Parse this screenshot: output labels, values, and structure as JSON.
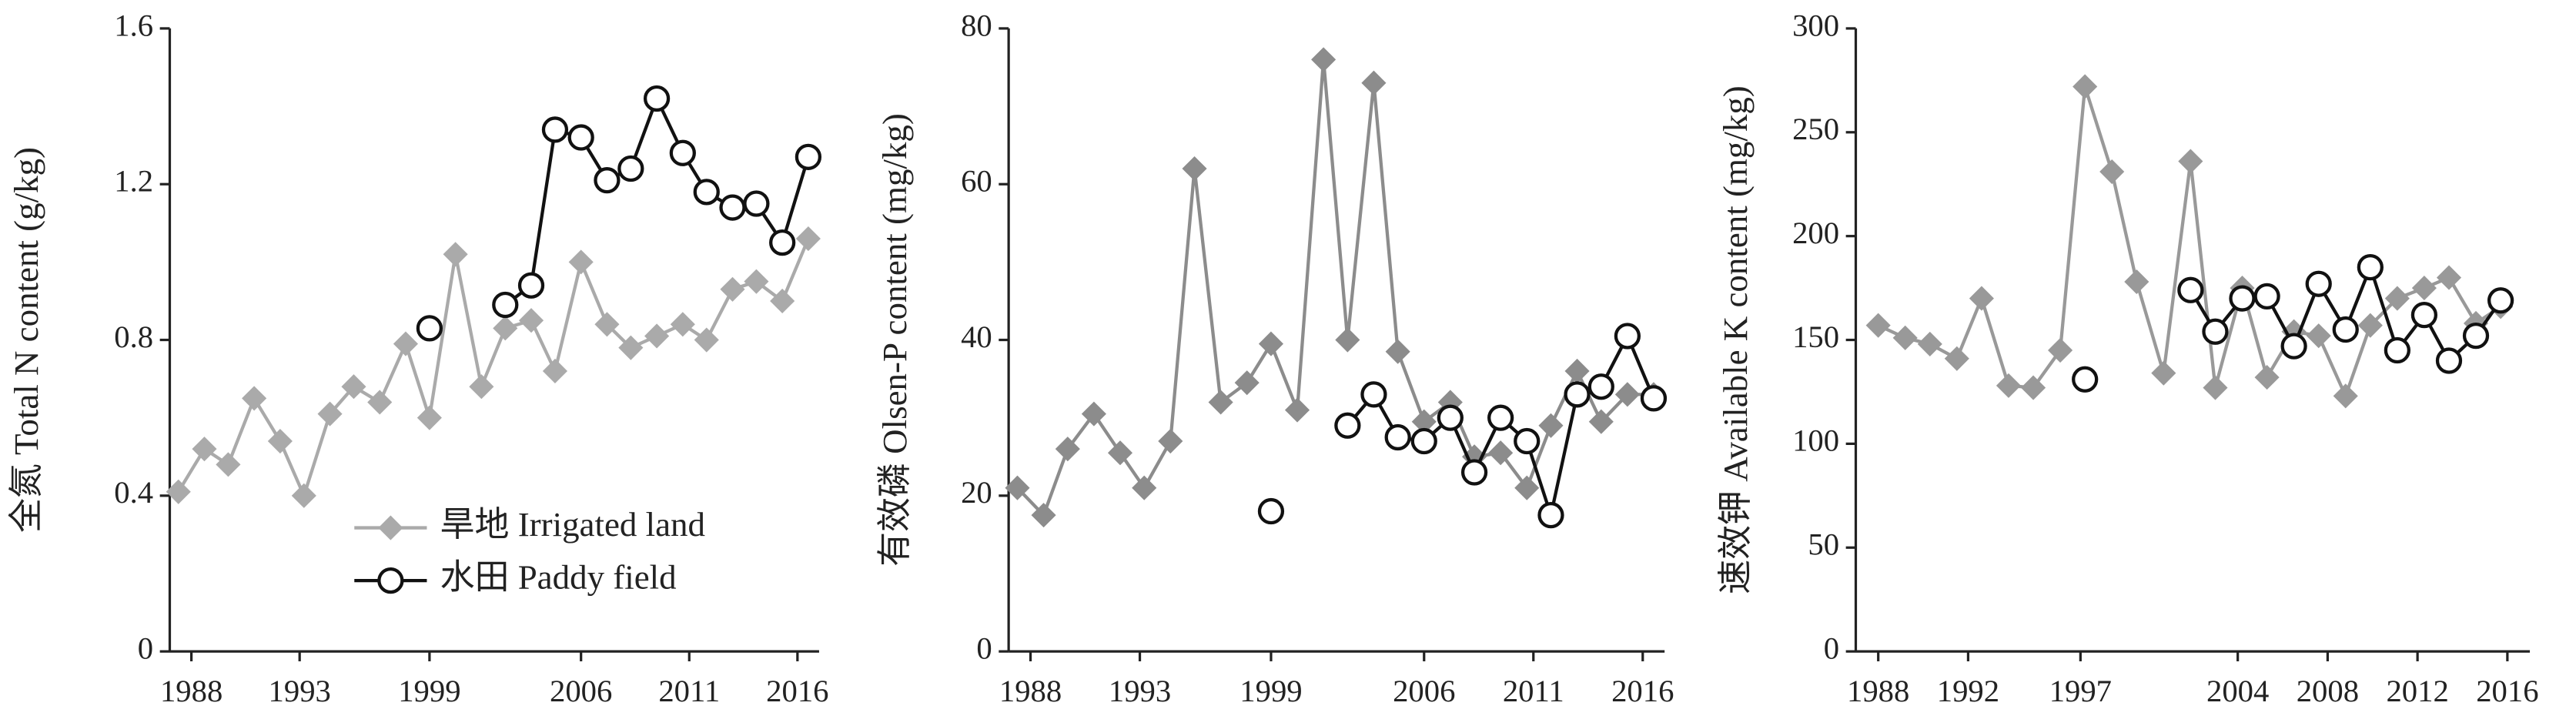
{
  "chart_data": [
    {
      "type": "line",
      "ylabel": "全氮 Total N content (g/kg)",
      "x": [
        1987.4,
        1988.6,
        1989.7,
        1990.9,
        1992.1,
        1993.2,
        1994.4,
        1995.5,
        1996.7,
        1997.9,
        1999.0,
        2000.2,
        2001.4,
        2002.5,
        2003.7,
        2004.8,
        2006.0,
        2007.2,
        2008.3,
        2009.5,
        2010.7,
        2011.8,
        2013.0,
        2014.1,
        2015.3,
        2016.5
      ],
      "xlim": [
        1987,
        2017
      ],
      "xticks": [
        1988,
        1993,
        1999,
        2006,
        2011,
        2016
      ],
      "ylim": [
        0,
        1.6
      ],
      "yticks": [
        0,
        0.4,
        0.8,
        1.2,
        1.6
      ],
      "legend": "lower left",
      "series": [
        {
          "name": "旱地 Irrigated land",
          "color": "#aaaaaa",
          "marker": "diamond",
          "values": [
            0.41,
            0.52,
            0.48,
            0.65,
            0.54,
            0.4,
            0.61,
            0.68,
            0.64,
            0.79,
            0.6,
            1.02,
            0.68,
            0.83,
            0.85,
            0.72,
            1.0,
            0.84,
            0.78,
            0.81,
            0.84,
            0.8,
            0.93,
            0.95,
            0.9,
            1.06
          ]
        },
        {
          "name": "水田 Paddy field",
          "color": "#111111",
          "marker": "circle",
          "values": [
            null,
            null,
            null,
            null,
            null,
            null,
            null,
            null,
            null,
            null,
            0.83,
            null,
            null,
            0.89,
            0.94,
            1.34,
            1.32,
            1.21,
            1.24,
            1.42,
            1.28,
            1.18,
            1.14,
            1.15,
            1.05,
            1.27
          ]
        }
      ]
    },
    {
      "type": "line",
      "ylabel": "有效磷 Olsen-P content (mg/kg)",
      "x": [
        1987.4,
        1988.6,
        1989.7,
        1990.9,
        1992.1,
        1993.2,
        1994.4,
        1995.5,
        1996.7,
        1997.9,
        1999.0,
        2000.2,
        2001.4,
        2002.5,
        2003.7,
        2004.8,
        2006.0,
        2007.2,
        2008.3,
        2009.5,
        2010.7,
        2011.8,
        2013.0,
        2014.1,
        2015.3,
        2016.5
      ],
      "xlim": [
        1987,
        2017
      ],
      "xticks": [
        1988,
        1993,
        1999,
        2006,
        2011,
        2016
      ],
      "ylim": [
        0,
        80
      ],
      "yticks": [
        0,
        20,
        40,
        60,
        80
      ],
      "series": [
        {
          "color": "#8c8c8c",
          "marker": "diamond",
          "values": [
            21,
            17.5,
            26,
            30.5,
            25.5,
            21,
            27,
            62,
            32,
            34.5,
            39.5,
            31,
            76,
            40,
            73,
            38.5,
            29.5,
            32,
            25,
            25.5,
            21,
            29,
            36,
            29.5,
            33,
            33
          ]
        },
        {
          "color": "#111111",
          "marker": "circle",
          "values": [
            null,
            null,
            null,
            null,
            null,
            null,
            null,
            null,
            null,
            null,
            18,
            null,
            null,
            29,
            33,
            27.5,
            27,
            30,
            23,
            30,
            27,
            17.5,
            33,
            34,
            40.5,
            32.5
          ]
        }
      ]
    },
    {
      "type": "line",
      "ylabel": "速效钾 Available K content (mg/kg)",
      "x": [
        1988.0,
        1989.2,
        1990.3,
        1991.5,
        1992.6,
        1993.8,
        1994.9,
        1996.1,
        1997.2,
        1998.4,
        1999.5,
        2000.7,
        2001.9,
        2003.0,
        2004.2,
        2005.3,
        2006.5,
        2007.6,
        2008.8,
        2009.9,
        2011.1,
        2012.3,
        2013.4,
        2014.6,
        2015.7
      ],
      "xlim": [
        1987,
        2017
      ],
      "xticks": [
        1988,
        1992,
        1997,
        2004,
        2008,
        2012,
        2016
      ],
      "ylim": [
        0,
        300
      ],
      "yticks": [
        0,
        50,
        100,
        150,
        200,
        250,
        300
      ],
      "series": [
        {
          "color": "#999999",
          "marker": "diamond",
          "values": [
            157,
            151,
            148,
            141,
            170,
            128,
            127,
            145,
            272,
            231,
            178,
            134,
            236,
            127,
            175,
            132,
            154,
            152,
            123,
            157,
            170,
            175,
            180,
            158,
            166
          ]
        },
        {
          "color": "#111111",
          "marker": "circle",
          "values": [
            null,
            null,
            null,
            null,
            null,
            null,
            null,
            null,
            131,
            null,
            null,
            null,
            174,
            154,
            170,
            171,
            147,
            177,
            155,
            185,
            145,
            162,
            140,
            152,
            169
          ]
        }
      ]
    }
  ]
}
